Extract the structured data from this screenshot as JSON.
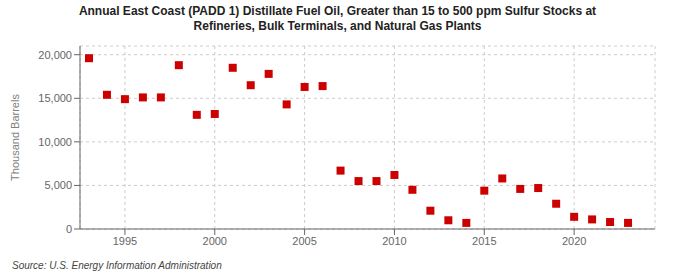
{
  "chart_data": {
    "type": "scatter",
    "title": "Annual East Coast (PADD 1) Distillate Fuel Oil, Greater than 15 to 500 ppm Sulfur Stocks at\nRefineries, Bulk Terminals, and Natural Gas Plants",
    "y_label": "Thousand Barrels",
    "annotations": [
      "Source: U.S. Energy Information Administration"
    ],
    "x": [
      1993,
      1994,
      1995,
      1996,
      1997,
      1998,
      1999,
      2000,
      2001,
      2002,
      2003,
      2004,
      2005,
      2006,
      2007,
      2008,
      2009,
      2010,
      2011,
      2012,
      2013,
      2014,
      2015,
      2016,
      2017,
      2018,
      2019,
      2020,
      2021,
      2022,
      2023
    ],
    "values": [
      19600,
      15400,
      14900,
      15100,
      15100,
      18800,
      13100,
      13200,
      18500,
      16500,
      17800,
      14300,
      16300,
      16400,
      6700,
      5500,
      5500,
      6200,
      4500,
      2100,
      1000,
      700,
      4400,
      5800,
      4600,
      4700,
      2900,
      1400,
      1100,
      800,
      700
    ],
    "color": "#cc0000",
    "marker": "square",
    "grid": true,
    "xlim": [
      1992.5,
      2024.5
    ],
    "xticks": [
      1995,
      2000,
      2005,
      2010,
      2015,
      2020
    ],
    "ylim": [
      0,
      21000
    ],
    "yticks": [
      0,
      {
        "value": 5000,
        "label": "5,000"
      },
      {
        "value": 10000,
        "label": "10,000"
      },
      {
        "value": 15000,
        "label": "15,000"
      },
      {
        "value": 20000,
        "label": "20,000"
      }
    ]
  }
}
